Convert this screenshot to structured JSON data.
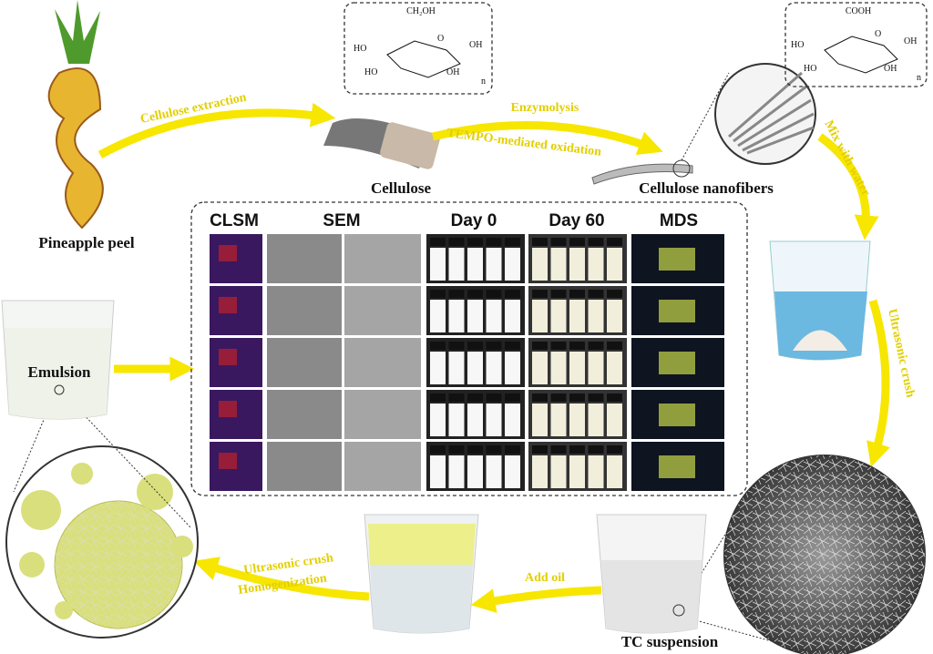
{
  "labels": {
    "pineapple": "Pineapple peel",
    "extraction": "Cellulose extraction",
    "cellulose": "Cellulose",
    "enzymolysis": "Enzymolysis",
    "tempo": "TEMPO-mediated oxidation",
    "nanofibers": "Cellulose nanofibers",
    "mix": "Mix with water",
    "ultrasonic1": "Ultrasonic crush",
    "tc": "TC suspension",
    "oil": "Add oil",
    "ultrasonic2": "Ultrasonic crush",
    "homogenization": "Homogenization",
    "emulsion": "Emulsion"
  },
  "panel": {
    "headers": [
      "CLSM",
      "SEM",
      "Day 0",
      "Day 60",
      "MDS"
    ]
  },
  "structures": [
    {
      "group": "CH₂OH",
      "left": "HO",
      "ring": "O",
      "right": "OH",
      "bottom_left": "HO",
      "bottom_right": "OH",
      "repeat": "n"
    },
    {
      "group": "COOH",
      "left": "HO",
      "ring": "O",
      "right": "OH",
      "bottom_left": "HO",
      "bottom_right": "OH",
      "repeat": "n"
    }
  ]
}
